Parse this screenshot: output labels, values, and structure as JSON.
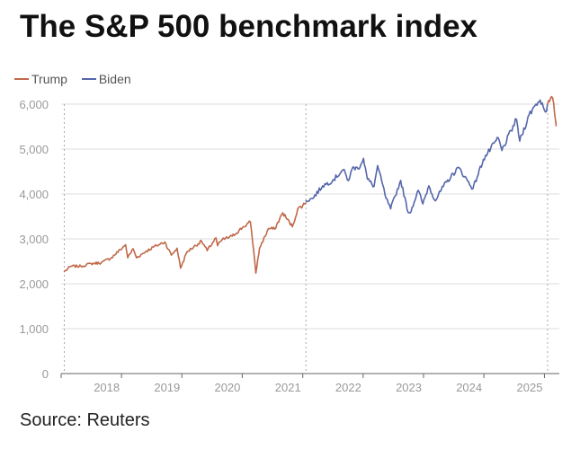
{
  "title": "The S&P 500 benchmark index",
  "source": "Source: Reuters",
  "colors": {
    "trump": "#c0694a",
    "biden": "#5566aa",
    "grid": "#dddddd",
    "divider": "#aaaaaa",
    "axis": "#666666",
    "tick_text": "#999999"
  },
  "chart_data": {
    "type": "line",
    "title": "The S&P 500 benchmark index",
    "xlabel": "",
    "ylabel": "",
    "ylim": [
      0,
      6000
    ],
    "xlim": [
      "2017-01",
      "2025-04"
    ],
    "grid": true,
    "legend": "top-left",
    "y_ticks": [
      "0",
      "1,000",
      "2,000",
      "3,000",
      "4,000",
      "5,000",
      "6,000"
    ],
    "x_ticks": [
      "2018",
      "2019",
      "2020",
      "2021",
      "2022",
      "2023",
      "2024",
      "2025"
    ],
    "term_boundaries": [
      "2021-01-20",
      "2025-01-20"
    ],
    "series": [
      {
        "name": "Trump",
        "period": "first-term",
        "x": [
          "2017-01-20",
          "2017-03-01",
          "2017-05-01",
          "2017-07-01",
          "2017-09-01",
          "2017-11-01",
          "2018-01-26",
          "2018-02-08",
          "2018-03-12",
          "2018-04-02",
          "2018-06-01",
          "2018-08-01",
          "2018-09-20",
          "2018-10-29",
          "2018-12-03",
          "2018-12-24",
          "2019-02-01",
          "2019-04-30",
          "2019-06-03",
          "2019-07-26",
          "2019-08-05",
          "2019-09-01",
          "2019-11-01",
          "2020-01-02",
          "2020-02-19",
          "2020-03-10",
          "2020-03-23",
          "2020-04-15",
          "2020-06-08",
          "2020-07-15",
          "2020-09-02",
          "2020-10-30",
          "2020-12-01",
          "2021-01-19"
        ],
        "values": [
          2270,
          2390,
          2390,
          2450,
          2470,
          2580,
          2870,
          2580,
          2780,
          2580,
          2730,
          2850,
          2930,
          2640,
          2790,
          2350,
          2710,
          2950,
          2740,
          3020,
          2850,
          2980,
          3060,
          3250,
          3380,
          2740,
          2240,
          2800,
          3230,
          3220,
          3580,
          3270,
          3660,
          3800
        ]
      },
      {
        "name": "Biden",
        "period": "term",
        "x": [
          "2021-01-20",
          "2021-03-01",
          "2021-05-01",
          "2021-07-01",
          "2021-09-02",
          "2021-10-04",
          "2021-11-01",
          "2021-12-01",
          "2022-01-03",
          "2022-01-27",
          "2022-03-08",
          "2022-03-29",
          "2022-05-20",
          "2022-06-16",
          "2022-08-16",
          "2022-09-30",
          "2022-10-12",
          "2022-11-30",
          "2022-12-28",
          "2023-02-02",
          "2023-03-13",
          "2023-05-01",
          "2023-07-31",
          "2023-10-27",
          "2023-12-29",
          "2024-03-28",
          "2024-04-19",
          "2024-07-16",
          "2024-08-05",
          "2024-09-30",
          "2024-11-11",
          "2024-12-06",
          "2025-01-13",
          "2025-01-19"
        ],
        "values": [
          3850,
          3900,
          4180,
          4300,
          4540,
          4300,
          4600,
          4560,
          4790,
          4330,
          4170,
          4630,
          3900,
          3670,
          4300,
          3590,
          3580,
          4080,
          3780,
          4180,
          3850,
          4170,
          4590,
          4120,
          4770,
          5250,
          4970,
          5660,
          5180,
          5760,
          6000,
          6090,
          5840,
          5990
        ]
      },
      {
        "name": "Trump",
        "period": "second-term",
        "x": [
          "2025-01-20",
          "2025-02-19",
          "2025-03-04",
          "2025-03-10",
          "2025-03-13"
        ],
        "values": [
          6000,
          6140,
          5780,
          5610,
          5520
        ]
      }
    ]
  }
}
